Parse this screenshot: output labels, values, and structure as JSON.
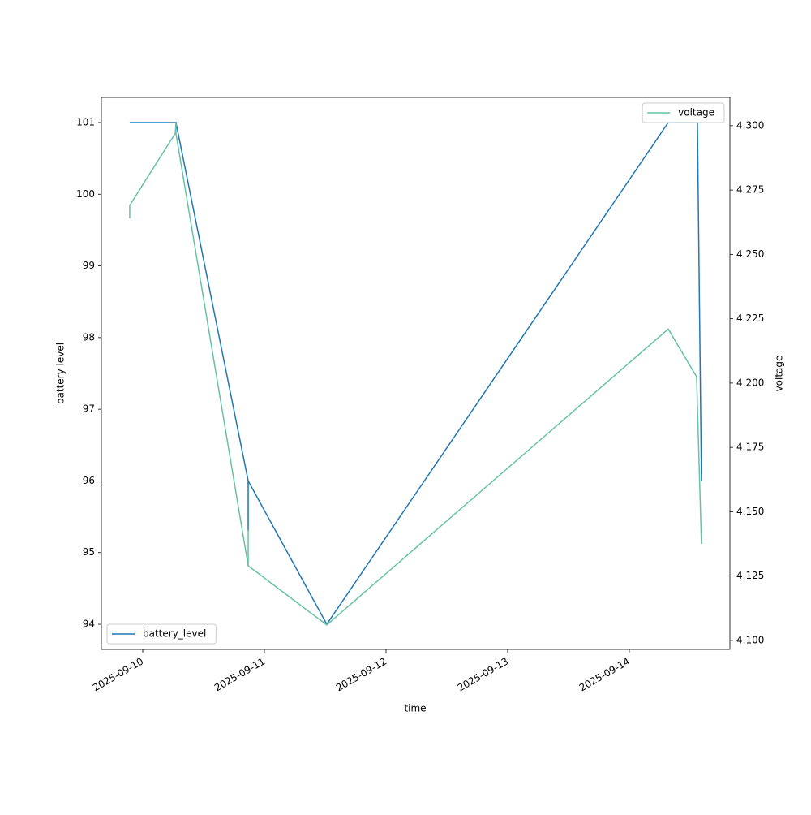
{
  "chart_data": {
    "type": "line",
    "xlabel": "time",
    "ylabel": "battery level",
    "y2label": "voltage",
    "xlim": [
      20340.66,
      20345.827
    ],
    "xticks": [
      {
        "value": 20341,
        "label": "2025-09-10"
      },
      {
        "value": 20342,
        "label": "2025-09-11"
      },
      {
        "value": 20343,
        "label": "2025-09-12"
      },
      {
        "value": 20344,
        "label": "2025-09-13"
      },
      {
        "value": 20345,
        "label": "2025-09-14"
      }
    ],
    "ylim": [
      93.649,
      101.351
    ],
    "yticks": [
      94,
      95,
      96,
      97,
      98,
      99,
      100,
      101
    ],
    "y2lim": [
      4.0965,
      4.311
    ],
    "y2ticks": [
      {
        "value": 4.1,
        "label": "4.100"
      },
      4.125,
      {
        "value": 4.15,
        "label": "4.150"
      },
      4.175,
      {
        "value": 4.2,
        "label": "4.200"
      },
      4.225,
      {
        "value": 4.25,
        "label": "4.250"
      },
      4.275,
      {
        "value": 4.3,
        "label": "4.300"
      }
    ],
    "series": [
      {
        "name": "battery_level",
        "color": "#1f77b4",
        "axis": "y",
        "legend": "lower left",
        "x": [
          20340.893,
          20341.273,
          20341.867,
          20341.867,
          20341.867,
          20342.513,
          20345.32,
          20345.56,
          20345.593
        ],
        "values": [
          101,
          101,
          96,
          95.3,
          96,
          94,
          101,
          101,
          96
        ]
      },
      {
        "name": "voltage",
        "color": "#66c2a5",
        "axis": "y2",
        "legend": "upper right",
        "x": [
          20340.893,
          20340.893,
          20341.267,
          20341.273,
          20341.273,
          20341.867,
          20341.867,
          20341.867,
          20342.513,
          20345.32,
          20345.553,
          20345.593
        ],
        "values": [
          4.264,
          4.269,
          4.297,
          4.301,
          4.297,
          4.129,
          4.143,
          4.129,
          4.106,
          4.221,
          4.2025,
          4.1375
        ]
      }
    ]
  }
}
